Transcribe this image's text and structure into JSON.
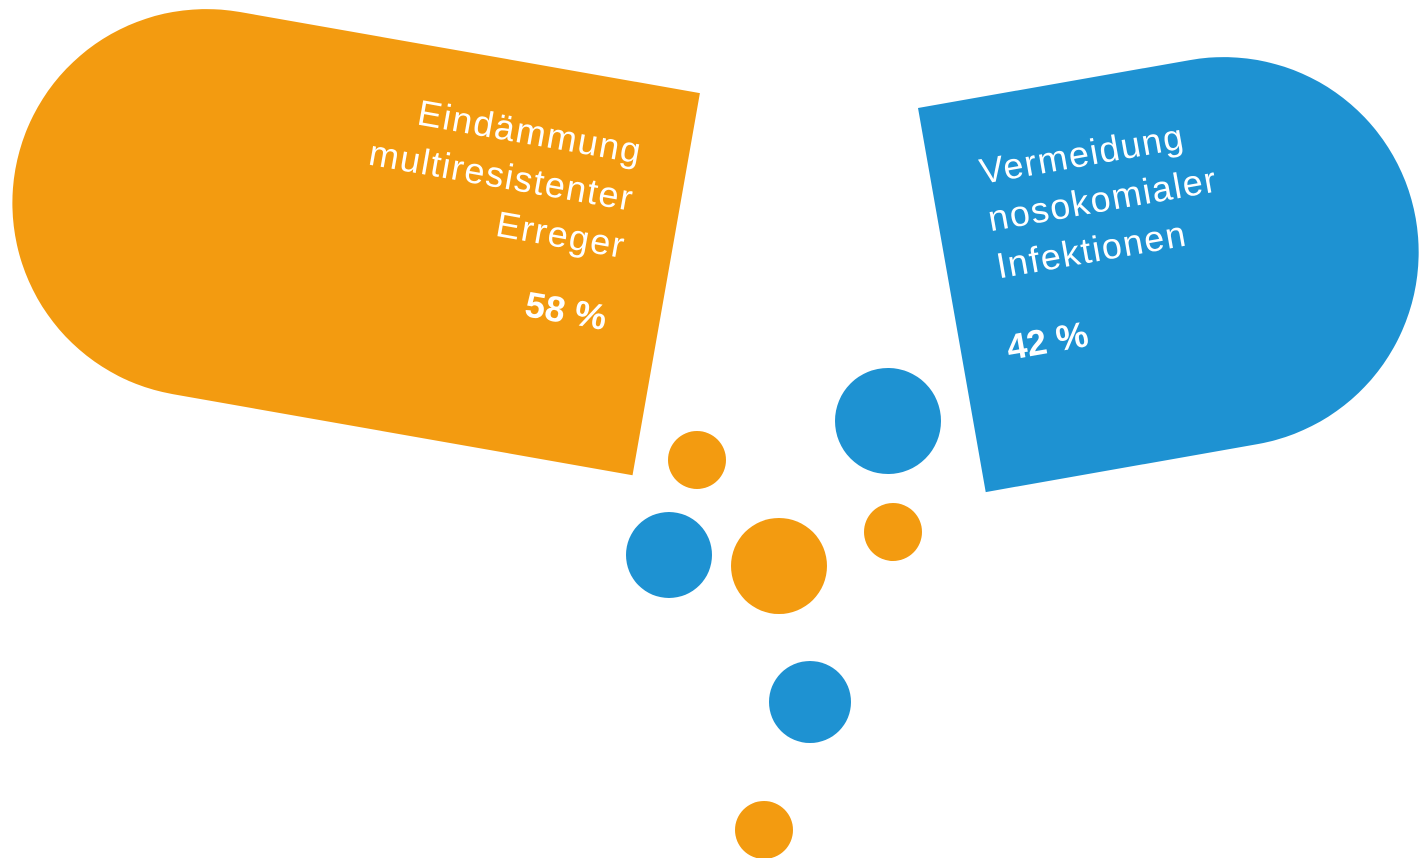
{
  "items": [
    {
      "label": [
        "Eindämmung",
        "multiresistenter",
        "Erreger"
      ],
      "value": "58 %"
    },
    {
      "label": [
        "Vermeidung",
        "nosokomialer",
        "Infektionen"
      ],
      "value": "42 %"
    }
  ]
}
